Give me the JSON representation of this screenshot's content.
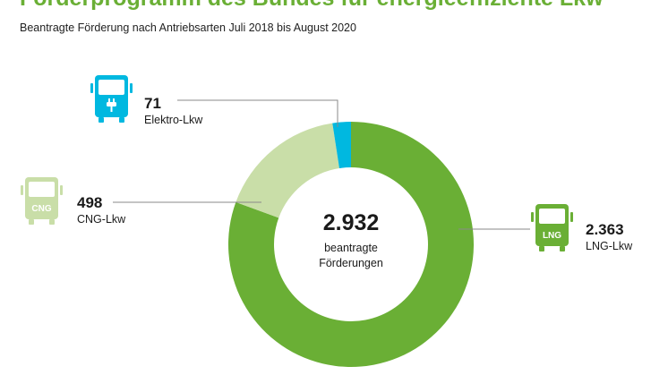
{
  "header": {
    "title": "Förderprogramm des Bundes für energieeffiziente Lkw",
    "subtitle": "Beantragte Förderung nach Antriebsarten Juli 2018 bis August 2020"
  },
  "chart_data": {
    "type": "pie",
    "variant": "donut",
    "center": {
      "total": "2.932",
      "line1": "beantragte",
      "line2": "Förderungen"
    },
    "slices": [
      {
        "name": "LNG-Lkw",
        "value": 2363,
        "value_label": "2.363",
        "color": "#6aaf35",
        "icon": "truck-lng-icon",
        "icon_text": "LNG"
      },
      {
        "name": "CNG-Lkw",
        "value": 498,
        "value_label": "498",
        "color": "#c9dea8",
        "icon": "truck-cng-icon",
        "icon_text": "CNG"
      },
      {
        "name": "Elektro-Lkw",
        "value": 71,
        "value_label": "71",
        "color": "#00b8e0",
        "icon": "truck-electric-icon"
      }
    ]
  }
}
